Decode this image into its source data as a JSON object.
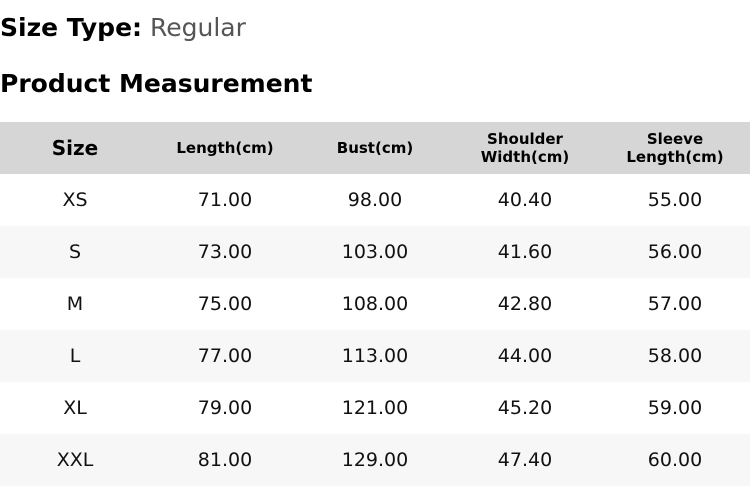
{
  "size_type": {
    "label": "Size Type:",
    "value": "Regular"
  },
  "title": "Product Measurement",
  "table": {
    "headers": [
      "Size",
      "Length(cm)",
      "Bust(cm)",
      "Shoulder Width(cm)",
      "Sleeve Length(cm)"
    ],
    "rows": [
      [
        "XS",
        "71.00",
        "98.00",
        "40.40",
        "55.00"
      ],
      [
        "S",
        "73.00",
        "103.00",
        "41.60",
        "56.00"
      ],
      [
        "M",
        "75.00",
        "108.00",
        "42.80",
        "57.00"
      ],
      [
        "L",
        "77.00",
        "113.00",
        "44.00",
        "58.00"
      ],
      [
        "XL",
        "79.00",
        "121.00",
        "45.20",
        "59.00"
      ],
      [
        "XXL",
        "81.00",
        "129.00",
        "47.40",
        "60.00"
      ]
    ]
  },
  "colors": {
    "header_bg": "#d6d6d6",
    "stripe_bg": "#f7f7f7"
  }
}
